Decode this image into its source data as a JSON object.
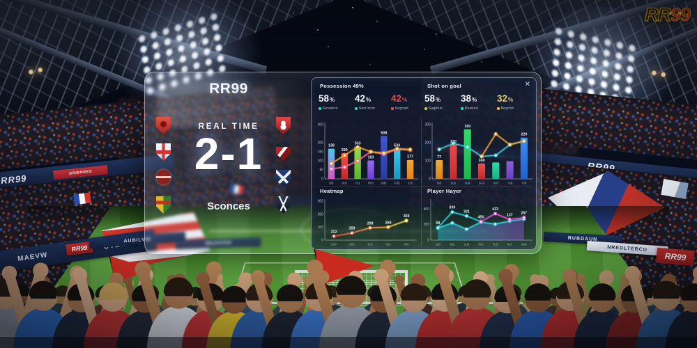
{
  "corner_logo": {
    "part1": "RR",
    "part2": "99",
    "stars": "✦✦"
  },
  "scoreboard": {
    "logo": "RR99",
    "status_label": "REAL TIME",
    "score": "2-1",
    "footer_label": "Sconces",
    "badges_left": [
      "red-crest-badge",
      "white-cross-crest-badge",
      "round-maroon-crest-badge",
      "quartered-crest-badge"
    ],
    "badges_right": [
      "red-eight-crest-badge",
      "red-stripe-crest-badge",
      "blue-sabers-crest-badge",
      "navy-wings-crest-badge"
    ]
  },
  "stats_panel": {
    "close_icon": "✕",
    "left": {
      "stats": [
        {
          "value": "58",
          "unit": "%",
          "label": "Sesutern",
          "dot": "#2fd5c8",
          "value_color": "#f2f6fc"
        },
        {
          "value": "42",
          "unit": "%",
          "label": "Serz bum",
          "dot": "#2fd5c8",
          "value_color": "#f2f6fc"
        },
        {
          "value": "42",
          "unit": "%",
          "label": "Segront",
          "dot": "#ef4c4c",
          "value_color": "#ef4c4c"
        }
      ]
    },
    "right": {
      "stats": [
        {
          "value": "58",
          "unit": "%",
          "label": "Saghtun",
          "dot": "#e8c23a",
          "value_color": "#f2f6fc"
        },
        {
          "value": "38",
          "unit": "%",
          "label": "Restrea",
          "dot": "#2fd5c8",
          "value_color": "#f2f6fc"
        },
        {
          "value": "32",
          "unit": "%",
          "label": "Begrtsh",
          "dot": "#e8c23a",
          "value_color": "#e9c96a"
        }
      ]
    }
  },
  "chart_data": [
    {
      "type": "bar",
      "title": "Possession 49%",
      "categories": [
        "6t5",
        "9o5",
        "7o1",
        "R03",
        "8d0",
        "F05",
        "1c5"
      ],
      "values": [
        167,
        143,
        179,
        102,
        237,
        167,
        105
      ],
      "bar_labels": [
        "138",
        "299",
        "533",
        "163",
        "508",
        "533",
        "177"
      ],
      "bar_colors": [
        [
          "#47c9f2",
          "#e050c8"
        ],
        [
          "#ef5350",
          "#c62828"
        ],
        [
          "#9ad84a",
          "#5cb82e"
        ],
        [
          "#9a6cf0",
          "#6d3fd4"
        ],
        [
          "#4257d0",
          "#2a3a9e"
        ],
        [
          "#38c8ec",
          "#1898c4"
        ],
        [
          "#f2a93b",
          "#e0821e"
        ]
      ],
      "series": [
        {
          "name": "trend-pink",
          "color": "#ff6b9a",
          "values": [
            55,
            65,
            100,
            150,
            137,
            163,
            159
          ]
        },
        {
          "name": "trend-orange",
          "color": "#f5a623",
          "values": [
            85,
            130,
            176,
            150,
            143,
            167,
            163
          ]
        }
      ],
      "ylim": [
        0,
        300
      ],
      "yticks": [
        [
          300,
          "300"
        ],
        [
          200,
          "200"
        ],
        [
          150,
          "150"
        ],
        [
          100,
          "100"
        ],
        [
          50,
          "50"
        ],
        [
          0,
          "0"
        ]
      ]
    },
    {
      "type": "bar",
      "title": "Shot on goal",
      "categories": [
        "8t5",
        "5o5",
        "6o8",
        "5G3",
        "6u5",
        "7o9",
        "7o5"
      ],
      "values": [
        104,
        189,
        274,
        85,
        91,
        98,
        228
      ],
      "bar_labels": [
        "77",
        "150",
        "169",
        "249",
        "",
        "",
        "229"
      ],
      "bar_colors": [
        [
          "#f0a832",
          "#d8861f"
        ],
        [
          "#e84b4b",
          "#c12f2f"
        ],
        [
          "#35d96a",
          "#18b84d"
        ],
        [
          "#e85050",
          "#c22929"
        ],
        [
          "#2fd9a5",
          "#14b583"
        ],
        [
          "#8a63d2",
          "#6a3fc0"
        ],
        [
          "#3f8df5",
          "#2360d0"
        ]
      ],
      "series": [
        {
          "name": "trend-cyan",
          "color": "#35d5e0",
          "values": [
            163,
            196,
            176,
            124,
            130,
            189,
            209
          ]
        },
        {
          "name": "trend-orange",
          "color": "#f0a832",
          "values": [
            null,
            null,
            null,
            124,
            248,
            189,
            209
          ]
        }
      ],
      "ylim": [
        0,
        300
      ],
      "yticks": [
        [
          300,
          "300"
        ],
        [
          200,
          "200"
        ],
        [
          100,
          "100"
        ],
        [
          0,
          "0"
        ]
      ]
    },
    {
      "type": "line",
      "title": "Heatmap",
      "categories": [
        "8u0",
        "6o0",
        "5c0",
        "0u3",
        "0v5"
      ],
      "series": [
        {
          "name": "heat-line",
          "color": "#fbbf24",
          "stroke_gradient": [
            "#ef4444",
            "#fde047"
          ],
          "values": [
            30,
            55,
            95,
            100,
            150
          ],
          "point_labels": [
            "212",
            "159",
            "208",
            "258",
            "359"
          ],
          "dot_colors": [
            "#ef5350",
            "#f06548",
            "#f97f2e",
            "#f9a825",
            "#fde047"
          ]
        }
      ],
      "ylim": [
        0,
        300
      ],
      "yticks": [
        [
          300,
          "300"
        ],
        [
          200,
          "200"
        ],
        [
          100,
          "100"
        ],
        [
          0,
          "0"
        ]
      ]
    },
    {
      "type": "area-line",
      "title": "Player Hayer",
      "categories": [
        "1o0",
        "6d1",
        "2u3",
        "0v3",
        "Tu3",
        "0x3",
        "0w3"
      ],
      "series": [
        {
          "name": "player-lower",
          "color": "#2dd4de",
          "area": [
            "#22d3ee",
            "#a855f7"
          ],
          "values": [
            155,
            220,
            140,
            230,
            205,
            245,
            270
          ]
        },
        {
          "name": "player-upper-cyan",
          "color": "#2dd4de",
          "values": [
            160,
            360,
            310,
            236,
            null,
            null,
            null
          ],
          "point_labels": [
            "59",
            "339",
            "321",
            "450",
            "",
            "",
            ""
          ]
        },
        {
          "name": "player-upper-magenta",
          "color": "#e255d8",
          "values": [
            null,
            null,
            null,
            236,
            340,
            265,
            290
          ],
          "point_labels": [
            "",
            "",
            "",
            "",
            "433",
            "137",
            "257"
          ]
        }
      ],
      "ylim": [
        0,
        500
      ],
      "yticks": [
        [
          400,
          "400"
        ],
        [
          200,
          "200"
        ],
        [
          0,
          "0"
        ]
      ]
    }
  ],
  "stadium": {
    "colors": {
      "banner_blue": "#1d2f52",
      "brand_red": "#c5303a",
      "field_green": "#58a338",
      "sky_navy": "#0b1426"
    },
    "banners": [
      {
        "text": "RR99"
      },
      {
        "text": "DRIBNRES"
      },
      {
        "text": "REAL 90"
      },
      {
        "text": "RR99"
      },
      {
        "text": "RRUBIN"
      },
      {
        "text": "MAEVW"
      },
      {
        "text": "UVEW"
      },
      {
        "text": "RR99"
      },
      {
        "text": "AUBILVW"
      },
      {
        "text": "RBLEUVGM"
      },
      {
        "text": "RUBDAUN"
      },
      {
        "text": "NREDLTERCU"
      },
      {
        "text": "RR99"
      }
    ]
  }
}
